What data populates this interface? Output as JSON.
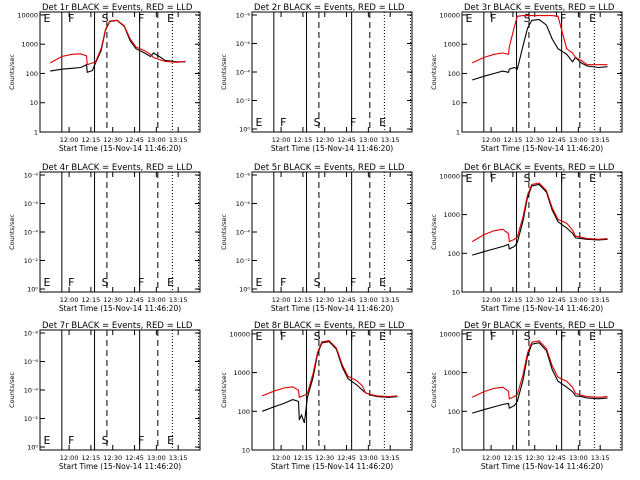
{
  "colors": {
    "events": "#000000",
    "lld": "#e00000",
    "background": "#ffffff"
  },
  "chart_data": [
    {
      "type": "line",
      "title": "Det 1r  BLACK = Events, RED = LLD",
      "xlabel": "Start Time (15-Nov-14 11:46:20)",
      "ylabel": "Counts/sec",
      "scale": "log",
      "yticks": [
        "1",
        "10",
        "100",
        "1000",
        "10000"
      ],
      "xticks": [
        "12:00",
        "12:15",
        "12:30",
        "12:45",
        "13:00",
        "13:15"
      ],
      "markers": [
        "E",
        "F",
        "S",
        "F",
        "E"
      ],
      "series": [
        {
          "values": [
            [
              -13,
              120
            ],
            [
              -5,
              140
            ],
            [
              2,
              150
            ],
            [
              8,
              160
            ],
            [
              12,
              200
            ],
            [
              12.5,
              110
            ],
            [
              16,
              125
            ],
            [
              18,
              220
            ],
            [
              22,
              600
            ],
            [
              25,
              3000
            ],
            [
              28,
              6000
            ],
            [
              33,
              6500
            ],
            [
              38,
              4000
            ],
            [
              42,
              1300
            ],
            [
              46,
              700
            ],
            [
              52,
              500
            ],
            [
              56,
              380
            ],
            [
              58,
              500
            ],
            [
              62,
              380
            ],
            [
              66,
              280
            ],
            [
              74,
              250
            ],
            [
              80,
              250
            ]
          ]
        },
        {
          "values": [
            [
              -13,
              230
            ],
            [
              -5,
              380
            ],
            [
              2,
              450
            ],
            [
              8,
              470
            ],
            [
              12,
              400
            ],
            [
              12.5,
              200
            ],
            [
              16,
              230
            ],
            [
              18,
              240
            ],
            [
              22,
              700
            ],
            [
              25,
              3200
            ],
            [
              28,
              6200
            ],
            [
              33,
              6600
            ],
            [
              38,
              4200
            ],
            [
              42,
              1500
            ],
            [
              46,
              800
            ],
            [
              52,
              600
            ],
            [
              56,
              450
            ],
            [
              58,
              350
            ],
            [
              62,
              300
            ],
            [
              66,
              260
            ],
            [
              74,
              240
            ],
            [
              80,
              260
            ]
          ]
        }
      ]
    },
    {
      "type": "line",
      "title": "Det 2r  BLACK = Events, RED = LLD",
      "xlabel": "Start Time (15-Nov-14 11:46:20)",
      "ylabel": "Counts/sec",
      "scale": "log",
      "yticks": [
        "10⁰",
        "10⁻²",
        "10⁻⁴",
        "10⁻⁶",
        "10⁻⁸"
      ],
      "xticks": [
        "12:00",
        "12:15",
        "12:30",
        "12:45",
        "13:00",
        "13:15"
      ],
      "markers": [
        "E",
        "F",
        "S",
        "F",
        "E"
      ],
      "series": []
    },
    {
      "type": "line",
      "title": "Det 3r  BLACK = Events, RED = LLD",
      "xlabel": "Start Time (15-Nov-14 11:46:20)",
      "ylabel": "Counts/sec",
      "scale": "log",
      "yticks": [
        "1",
        "10",
        "100",
        "1000",
        "10000"
      ],
      "xticks": [
        "12:00",
        "12:15",
        "12:30",
        "12:45",
        "13:00",
        "13:15"
      ],
      "markers": [
        "E",
        "F",
        "S",
        "F",
        "E"
      ],
      "series": [
        {
          "values": [
            [
              -13,
              60
            ],
            [
              -5,
              80
            ],
            [
              2,
              100
            ],
            [
              8,
              120
            ],
            [
              12,
              110
            ],
            [
              12.5,
              140
            ],
            [
              16,
              160
            ],
            [
              18,
              140
            ],
            [
              22,
              900
            ],
            [
              25,
              3500
            ],
            [
              28,
              6500
            ],
            [
              33,
              7000
            ],
            [
              38,
              4500
            ],
            [
              42,
              1500
            ],
            [
              46,
              700
            ],
            [
              52,
              450
            ],
            [
              56,
              250
            ],
            [
              58,
              350
            ],
            [
              62,
              230
            ],
            [
              66,
              180
            ],
            [
              74,
              160
            ],
            [
              80,
              170
            ]
          ]
        },
        {
          "values": [
            [
              -13,
              230
            ],
            [
              -5,
              350
            ],
            [
              2,
              450
            ],
            [
              8,
              500
            ],
            [
              12,
              450
            ],
            [
              12.5,
              800
            ],
            [
              16,
              4000
            ],
            [
              18,
              9000
            ],
            [
              22,
              9500
            ],
            [
              25,
              9500
            ],
            [
              28,
              9500
            ],
            [
              33,
              9500
            ],
            [
              38,
              9500
            ],
            [
              42,
              9500
            ],
            [
              46,
              9000
            ],
            [
              52,
              700
            ],
            [
              56,
              500
            ],
            [
              58,
              350
            ],
            [
              62,
              280
            ],
            [
              66,
              200
            ],
            [
              74,
              200
            ],
            [
              80,
              200
            ]
          ]
        }
      ]
    },
    {
      "type": "line",
      "title": "Det 4r  BLACK = Events, RED = LLD",
      "xlabel": "Start Time (15-Nov-14 11:46:20)",
      "ylabel": "Counts/sec",
      "scale": "log",
      "yticks": [
        "10⁰",
        "10⁻²",
        "10⁻⁴",
        "10⁻⁶",
        "10⁻⁸"
      ],
      "xticks": [
        "12:00",
        "12:15",
        "12:30",
        "12:45",
        "13:00",
        "13:15"
      ],
      "markers": [
        "E",
        "F",
        "S",
        "F",
        "E"
      ],
      "series": []
    },
    {
      "type": "line",
      "title": "Det 5r  BLACK = Events, RED = LLD",
      "xlabel": "Start Time (15-Nov-14 11:46:20)",
      "ylabel": "Counts/sec",
      "scale": "log",
      "yticks": [
        "10⁰",
        "10⁻²",
        "10⁻⁴",
        "10⁻⁶",
        "10⁻⁸"
      ],
      "xticks": [
        "12:00",
        "12:15",
        "12:30",
        "12:45",
        "13:00",
        "13:15"
      ],
      "markers": [
        "E",
        "F",
        "S",
        "F",
        "E"
      ],
      "series": []
    },
    {
      "type": "line",
      "title": "Det 6r  BLACK = Events, RED = LLD",
      "xlabel": "Start Time (15-Nov-14 11:46:20)",
      "ylabel": "Counts/sec",
      "scale": "log",
      "yticks": [
        "10",
        "100",
        "1000",
        "10000"
      ],
      "xticks": [
        "12:00",
        "12:15",
        "12:30",
        "12:45",
        "13:00",
        "13:15"
      ],
      "markers": [
        "E",
        "F",
        "S",
        "F",
        "E"
      ],
      "series": [
        {
          "values": [
            [
              -13,
              90
            ],
            [
              -5,
              110
            ],
            [
              2,
              130
            ],
            [
              8,
              150
            ],
            [
              12,
              170
            ],
            [
              12.5,
              130
            ],
            [
              16,
              150
            ],
            [
              18,
              190
            ],
            [
              22,
              700
            ],
            [
              25,
              2800
            ],
            [
              28,
              5500
            ],
            [
              33,
              6000
            ],
            [
              38,
              3800
            ],
            [
              42,
              1300
            ],
            [
              46,
              650
            ],
            [
              52,
              450
            ],
            [
              56,
              330
            ],
            [
              58,
              250
            ],
            [
              62,
              240
            ],
            [
              66,
              230
            ],
            [
              74,
              220
            ],
            [
              80,
              230
            ]
          ]
        },
        {
          "values": [
            [
              -13,
              200
            ],
            [
              -5,
              300
            ],
            [
              2,
              380
            ],
            [
              8,
              420
            ],
            [
              12,
              320
            ],
            [
              12.5,
              200
            ],
            [
              16,
              230
            ],
            [
              18,
              260
            ],
            [
              22,
              900
            ],
            [
              25,
              3200
            ],
            [
              28,
              6000
            ],
            [
              33,
              6500
            ],
            [
              38,
              4200
            ],
            [
              42,
              1500
            ],
            [
              46,
              750
            ],
            [
              52,
              600
            ],
            [
              56,
              400
            ],
            [
              58,
              280
            ],
            [
              62,
              260
            ],
            [
              66,
              240
            ],
            [
              74,
              230
            ],
            [
              80,
              240
            ]
          ]
        }
      ]
    },
    {
      "type": "line",
      "title": "Det 7r  BLACK = Events, RED = LLD",
      "xlabel": "Start Time (15-Nov-14 11:46:20)",
      "ylabel": "Counts/sec",
      "scale": "log",
      "yticks": [
        "10⁰",
        "10⁻²",
        "10⁻⁴",
        "10⁻⁶",
        "10⁻⁸"
      ],
      "xticks": [
        "12:00",
        "12:15",
        "12:30",
        "12:45",
        "13:00",
        "13:15"
      ],
      "markers": [
        "E",
        "F",
        "S",
        "F",
        "E"
      ],
      "series": []
    },
    {
      "type": "line",
      "title": "Det 8r  BLACK = Events, RED = LLD",
      "xlabel": "Start Time (15-Nov-14 11:46:20)",
      "ylabel": "Counts/sec",
      "scale": "log",
      "yticks": [
        "10",
        "100",
        "1000",
        "10000"
      ],
      "xticks": [
        "12:00",
        "12:15",
        "12:30",
        "12:45",
        "13:00",
        "13:15"
      ],
      "markers": [
        "E",
        "F",
        "S",
        "F",
        "E"
      ],
      "series": [
        {
          "values": [
            [
              -13,
              100
            ],
            [
              -5,
              130
            ],
            [
              2,
              160
            ],
            [
              8,
              200
            ],
            [
              12,
              180
            ],
            [
              12.5,
              60
            ],
            [
              14,
              80
            ],
            [
              16,
              50
            ],
            [
              18,
              220
            ],
            [
              22,
              750
            ],
            [
              25,
              3000
            ],
            [
              28,
              5800
            ],
            [
              33,
              6300
            ],
            [
              38,
              4000
            ],
            [
              42,
              1400
            ],
            [
              46,
              700
            ],
            [
              52,
              480
            ],
            [
              56,
              350
            ],
            [
              58,
              300
            ],
            [
              62,
              260
            ],
            [
              66,
              240
            ],
            [
              74,
              230
            ],
            [
              80,
              240
            ]
          ]
        },
        {
          "values": [
            [
              -13,
              250
            ],
            [
              -5,
              330
            ],
            [
              2,
              400
            ],
            [
              8,
              430
            ],
            [
              12,
              350
            ],
            [
              12.5,
              230
            ],
            [
              16,
              260
            ],
            [
              18,
              280
            ],
            [
              22,
              950
            ],
            [
              25,
              3300
            ],
            [
              28,
              6200
            ],
            [
              33,
              6700
            ],
            [
              38,
              4300
            ],
            [
              42,
              1600
            ],
            [
              46,
              800
            ],
            [
              52,
              620
            ],
            [
              56,
              450
            ],
            [
              58,
              300
            ],
            [
              62,
              270
            ],
            [
              66,
              250
            ],
            [
              74,
              240
            ],
            [
              80,
              250
            ]
          ]
        }
      ]
    },
    {
      "type": "line",
      "title": "Det 9r  BLACK = Events, RED = LLD",
      "xlabel": "Start Time (15-Nov-14 11:46:20)",
      "ylabel": "Counts/sec",
      "scale": "log",
      "yticks": [
        "10",
        "100",
        "1000",
        "10000"
      ],
      "xticks": [
        "12:00",
        "12:15",
        "12:30",
        "12:45",
        "13:00",
        "13:15"
      ],
      "markers": [
        "E",
        "F",
        "S",
        "F",
        "E"
      ],
      "series": [
        {
          "values": [
            [
              -13,
              90
            ],
            [
              -5,
              110
            ],
            [
              2,
              130
            ],
            [
              8,
              150
            ],
            [
              12,
              160
            ],
            [
              12.5,
              120
            ],
            [
              16,
              140
            ],
            [
              18,
              180
            ],
            [
              22,
              650
            ],
            [
              25,
              2700
            ],
            [
              28,
              5400
            ],
            [
              33,
              5900
            ],
            [
              38,
              3700
            ],
            [
              42,
              1200
            ],
            [
              46,
              600
            ],
            [
              52,
              420
            ],
            [
              56,
              320
            ],
            [
              58,
              250
            ],
            [
              62,
              240
            ],
            [
              66,
              220
            ],
            [
              74,
              210
            ],
            [
              80,
              220
            ]
          ]
        },
        {
          "values": [
            [
              -13,
              230
            ],
            [
              -5,
              320
            ],
            [
              2,
              390
            ],
            [
              8,
              420
            ],
            [
              12,
              330
            ],
            [
              12.5,
              210
            ],
            [
              16,
              240
            ],
            [
              18,
              270
            ],
            [
              22,
              900
            ],
            [
              25,
              3200
            ],
            [
              28,
              6100
            ],
            [
              33,
              6600
            ],
            [
              38,
              4200
            ],
            [
              42,
              1500
            ],
            [
              46,
              760
            ],
            [
              52,
              600
            ],
            [
              56,
              420
            ],
            [
              58,
              290
            ],
            [
              62,
              260
            ],
            [
              66,
              240
            ],
            [
              74,
              230
            ],
            [
              80,
              240
            ]
          ]
        }
      ]
    }
  ]
}
